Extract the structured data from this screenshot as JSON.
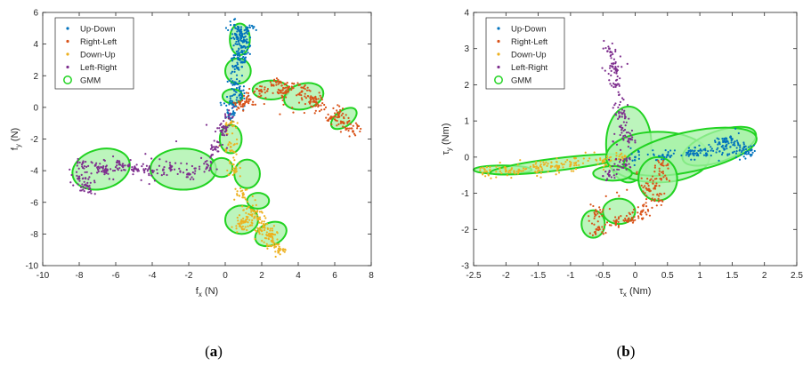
{
  "captions": {
    "a_letter": "a",
    "b_letter": "b"
  },
  "series_colors": {
    "Up-Down": "#0072BD",
    "Right-Left": "#D95319",
    "Down-Up": "#EDB120",
    "Left-Right": "#7E2F8E",
    "GMM_edge": "#21D321",
    "GMM_fill": "#A6F2A6"
  },
  "chart_data": [
    {
      "panel": "a",
      "type": "scatter",
      "xlabel": "f_x (N)",
      "ylabel": "f_y (N)",
      "xlim": [
        -10,
        8
      ],
      "ylim": [
        -10,
        6
      ],
      "xticks": [
        -10,
        -8,
        -6,
        -4,
        -2,
        0,
        2,
        4,
        6,
        8
      ],
      "yticks": [
        -10,
        -8,
        -6,
        -4,
        -2,
        0,
        2,
        4,
        6
      ],
      "legend": [
        "Up-Down",
        "Right-Left",
        "Down-Up",
        "Left-Right",
        "GMM"
      ],
      "legend_position": "top-left",
      "series": [
        {
          "name": "Up-Down",
          "points": [
            [
              0.8,
              4.8
            ],
            [
              1.0,
              4.2
            ],
            [
              0.6,
              4.6
            ],
            [
              0.9,
              3.5
            ],
            [
              0.7,
              2.5
            ],
            [
              0.6,
              1.5
            ],
            [
              0.8,
              0.8
            ],
            [
              0.4,
              0.3
            ],
            [
              0.2,
              -0.6
            ],
            [
              0.5,
              5.2
            ],
            [
              1.2,
              4.9
            ],
            [
              0.8,
              3.0
            ]
          ]
        },
        {
          "name": "Right-Left",
          "points": [
            [
              6.5,
              -1.0
            ],
            [
              7.0,
              -1.5
            ],
            [
              5.8,
              -0.6
            ],
            [
              5.0,
              0.3
            ],
            [
              4.2,
              1.0
            ],
            [
              3.5,
              1.3
            ],
            [
              2.8,
              1.6
            ],
            [
              2.0,
              1.0
            ],
            [
              1.3,
              0.5
            ],
            [
              0.8,
              0.2
            ],
            [
              6.2,
              -0.5
            ],
            [
              4.8,
              0.6
            ],
            [
              3.2,
              0.9
            ]
          ]
        },
        {
          "name": "Down-Up",
          "points": [
            [
              0.3,
              -1.0
            ],
            [
              0.3,
              -2.5
            ],
            [
              0.5,
              -4.0
            ],
            [
              1.0,
              -5.5
            ],
            [
              1.5,
              -6.5
            ],
            [
              1.0,
              -7.2
            ],
            [
              2.0,
              -7.8
            ],
            [
              2.6,
              -8.5
            ],
            [
              3.0,
              -9.0
            ],
            [
              0.8,
              -7.5
            ],
            [
              1.8,
              -7.0
            ],
            [
              2.5,
              -8.0
            ]
          ]
        },
        {
          "name": "Left-Right",
          "points": [
            [
              -7.8,
              -3.5
            ],
            [
              -8.0,
              -4.5
            ],
            [
              -7.0,
              -3.8
            ],
            [
              -6.5,
              -4.0
            ],
            [
              -5.8,
              -3.6
            ],
            [
              -5.0,
              -3.9
            ],
            [
              -4.0,
              -4.0
            ],
            [
              -3.0,
              -3.8
            ],
            [
              -2.0,
              -4.2
            ],
            [
              -1.0,
              -3.8
            ],
            [
              -0.5,
              -2.5
            ],
            [
              -0.2,
              -1.5
            ],
            [
              0.2,
              -0.5
            ],
            [
              -7.5,
              -5.0
            ]
          ]
        }
      ],
      "gmm_ellipses": [
        {
          "cx": 0.8,
          "cy": 4.3,
          "rx": 0.55,
          "ry": 1.0,
          "angle": 0
        },
        {
          "cx": 0.7,
          "cy": 2.3,
          "rx": 0.7,
          "ry": 0.8,
          "angle": 0
        },
        {
          "cx": 0.4,
          "cy": 0.7,
          "rx": 0.55,
          "ry": 0.45,
          "angle": 0
        },
        {
          "cx": 2.5,
          "cy": 1.1,
          "rx": 1.0,
          "ry": 0.6,
          "angle": 0
        },
        {
          "cx": 4.3,
          "cy": 0.7,
          "rx": 1.1,
          "ry": 0.8,
          "angle": -15
        },
        {
          "cx": 6.5,
          "cy": -0.7,
          "rx": 0.8,
          "ry": 0.5,
          "angle": -35
        },
        {
          "cx": 0.3,
          "cy": -2.0,
          "rx": 0.6,
          "ry": 0.9,
          "angle": 0
        },
        {
          "cx": 1.2,
          "cy": -4.2,
          "rx": 0.7,
          "ry": 0.9,
          "angle": 0
        },
        {
          "cx": 1.8,
          "cy": -5.9,
          "rx": 0.6,
          "ry": 0.5,
          "angle": 0
        },
        {
          "cx": 0.9,
          "cy": -7.1,
          "rx": 0.9,
          "ry": 0.9,
          "angle": 0
        },
        {
          "cx": 2.5,
          "cy": -8.0,
          "rx": 0.9,
          "ry": 0.7,
          "angle": -25
        },
        {
          "cx": -6.8,
          "cy": -3.9,
          "rx": 1.6,
          "ry": 1.25,
          "angle": -15
        },
        {
          "cx": -2.3,
          "cy": -3.9,
          "rx": 1.8,
          "ry": 1.3,
          "angle": 0
        },
        {
          "cx": -0.2,
          "cy": -3.8,
          "rx": 0.6,
          "ry": 0.6,
          "angle": 0
        }
      ]
    },
    {
      "panel": "b",
      "type": "scatter",
      "xlabel": "τ_x (Nm)",
      "ylabel": "τ_y (Nm)",
      "xlim": [
        -2.5,
        2.5
      ],
      "ylim": [
        -3,
        4
      ],
      "xticks": [
        -2.5,
        -2,
        -1.5,
        -1,
        -0.5,
        0,
        0.5,
        1,
        1.5,
        2,
        2.5
      ],
      "yticks": [
        -3,
        -2,
        -1,
        0,
        1,
        2,
        3,
        4
      ],
      "legend": [
        "Up-Down",
        "Right-Left",
        "Down-Up",
        "Left-Right",
        "GMM"
      ],
      "legend_position": "top-left",
      "series": [
        {
          "name": "Up-Down",
          "points": [
            [
              1.3,
              0.4
            ],
            [
              1.5,
              0.5
            ],
            [
              1.7,
              0.1
            ],
            [
              1.1,
              0.1
            ],
            [
              0.5,
              0.05
            ],
            [
              0.0,
              0.0
            ],
            [
              1.8,
              0.2
            ],
            [
              1.4,
              0.3
            ],
            [
              0.9,
              0.1
            ]
          ]
        },
        {
          "name": "Right-Left",
          "points": [
            [
              0.4,
              -0.6
            ],
            [
              0.3,
              -1.2
            ],
            [
              0.1,
              -1.5
            ],
            [
              -0.1,
              -1.7
            ],
            [
              -0.3,
              -1.8
            ],
            [
              -0.6,
              -2.0
            ],
            [
              -0.6,
              -1.5
            ],
            [
              0.4,
              -0.2
            ],
            [
              0.2,
              -0.9
            ]
          ]
        },
        {
          "name": "Down-Up",
          "points": [
            [
              -2.3,
              -0.4
            ],
            [
              -2.0,
              -0.4
            ],
            [
              -1.5,
              -0.3
            ],
            [
              -1.0,
              -0.2
            ],
            [
              -0.5,
              -0.1
            ],
            [
              -0.2,
              0.0
            ],
            [
              -1.8,
              -0.35
            ],
            [
              -1.2,
              -0.25
            ]
          ]
        },
        {
          "name": "Left-Right",
          "points": [
            [
              -0.4,
              3.0
            ],
            [
              -0.3,
              2.0
            ],
            [
              -0.2,
              1.2
            ],
            [
              -0.1,
              0.5
            ],
            [
              -0.15,
              -0.2
            ],
            [
              -0.4,
              -0.5
            ],
            [
              -0.2,
              0.8
            ],
            [
              -0.35,
              2.5
            ]
          ]
        }
      ],
      "gmm_ellipses": [
        {
          "cx": -2.05,
          "cy": -0.35,
          "rx": 0.45,
          "ry": 0.12,
          "angle": 0
        },
        {
          "cx": -1.2,
          "cy": -0.2,
          "rx": 1.05,
          "ry": 0.17,
          "angle": -7
        },
        {
          "cx": -0.1,
          "cy": 0.35,
          "rx": 0.35,
          "ry": 1.05,
          "angle": 0
        },
        {
          "cx": 0.35,
          "cy": 0.0,
          "rx": 0.8,
          "ry": 0.7,
          "angle": 0
        },
        {
          "cx": 1.3,
          "cy": 0.3,
          "rx": 0.6,
          "ry": 0.42,
          "angle": -20
        },
        {
          "cx": 0.85,
          "cy": 0.15,
          "rx": 1.05,
          "ry": 0.55,
          "angle": -12
        },
        {
          "cx": 0.35,
          "cy": -0.6,
          "rx": 0.3,
          "ry": 0.6,
          "angle": 0
        },
        {
          "cx": -0.25,
          "cy": -1.5,
          "rx": 0.25,
          "ry": 0.35,
          "angle": 0
        },
        {
          "cx": -0.65,
          "cy": -1.85,
          "rx": 0.18,
          "ry": 0.38,
          "angle": 0
        },
        {
          "cx": -0.35,
          "cy": -0.45,
          "rx": 0.3,
          "ry": 0.2,
          "angle": 0
        }
      ]
    }
  ]
}
